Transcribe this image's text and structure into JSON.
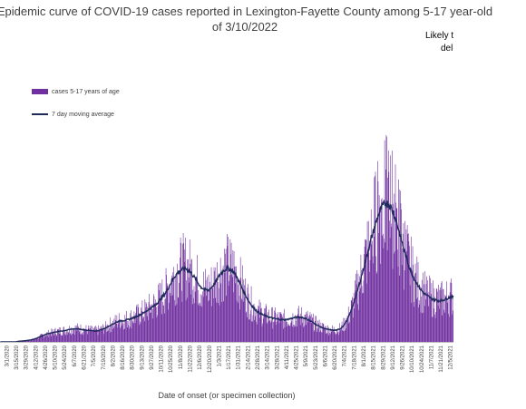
{
  "chart_data": {
    "type": "bar",
    "title_lines": [
      "Epidemic curve of COVID-19 cases reported in Lexington-Fayette County among 5-17 year-old",
      "of 3/10/2022"
    ],
    "note_lines": [
      "Likely t",
      "del"
    ],
    "xlabel": "Date of onset (or specimen collection)",
    "ylabel": "",
    "colors": {
      "bar": "#7030A0",
      "line": "#1F2A5C"
    },
    "series": [
      {
        "name": "cases 5-17 years of age",
        "kind": "bar"
      },
      {
        "name": "7 day moving average",
        "kind": "line"
      }
    ],
    "x_tick_labels": [
      "3/1/2020",
      "3/15/2020",
      "3/29/2020",
      "4/12/2020",
      "4/26/2020",
      "5/10/2020",
      "5/24/2020",
      "6/7/2020",
      "6/21/2020",
      "7/5/2020",
      "7/19/2020",
      "8/2/2020",
      "8/16/2020",
      "8/30/2020",
      "9/13/2020",
      "9/27/2020",
      "10/11/2020",
      "10/25/2020",
      "11/8/2020",
      "11/22/2020",
      "12/6/2020",
      "12/20/2020",
      "1/3/2021",
      "1/17/2021",
      "1/31/2021",
      "2/14/2021",
      "2/28/2021",
      "3/14/2021",
      "3/28/2021",
      "4/11/2021",
      "4/25/2021",
      "5/9/2021",
      "5/23/2021",
      "6/6/2021",
      "6/20/2021",
      "7/4/2021",
      "7/18/2021",
      "8/1/2021",
      "8/15/2021",
      "8/29/2021",
      "9/12/2021",
      "9/26/2021",
      "10/10/2021",
      "10/24/2021",
      "11/7/2021",
      "11/21/2021",
      "12/5/2021"
    ],
    "weekly_average_cases": [
      0,
      0,
      0,
      0,
      0,
      0.3,
      0.4,
      0.6,
      0.8,
      1.2,
      1.8,
      2.5,
      3.2,
      3.6,
      4.0,
      4.4,
      4.6,
      4.8,
      5.2,
      5.4,
      5.6,
      5.4,
      5.2,
      5.0,
      4.8,
      4.6,
      4.8,
      5.4,
      6.0,
      7.0,
      7.8,
      8.6,
      9.0,
      9.2,
      9.6,
      10.2,
      10.8,
      11.6,
      12.4,
      13.6,
      14.6,
      15.8,
      17.4,
      19.4,
      21.6,
      24.8,
      27.6,
      29.6,
      30.8,
      31.4,
      30.4,
      28.4,
      26.0,
      23.6,
      22.4,
      22.0,
      23.4,
      25.6,
      28.4,
      30.4,
      31.4,
      31.0,
      29.4,
      26.4,
      23.0,
      19.6,
      16.8,
      14.6,
      13.0,
      12.0,
      11.2,
      10.6,
      10.2,
      9.8,
      9.6,
      9.4,
      9.6,
      10.0,
      10.4,
      10.6,
      10.4,
      9.8,
      9.0,
      8.0,
      7.0,
      6.2,
      5.6,
      5.2,
      5.0,
      5.0,
      5.6,
      7.2,
      10.0,
      14.0,
      19.0,
      24.6,
      30.6,
      36.8,
      43.0,
      48.6,
      54.0,
      57.6,
      59.4,
      58.6,
      55.4,
      50.4,
      44.4,
      38.4,
      33.2,
      29.0,
      25.6,
      23.0,
      21.0,
      19.6,
      18.6,
      18.0,
      17.6,
      17.8,
      18.4,
      19.2
    ]
  }
}
